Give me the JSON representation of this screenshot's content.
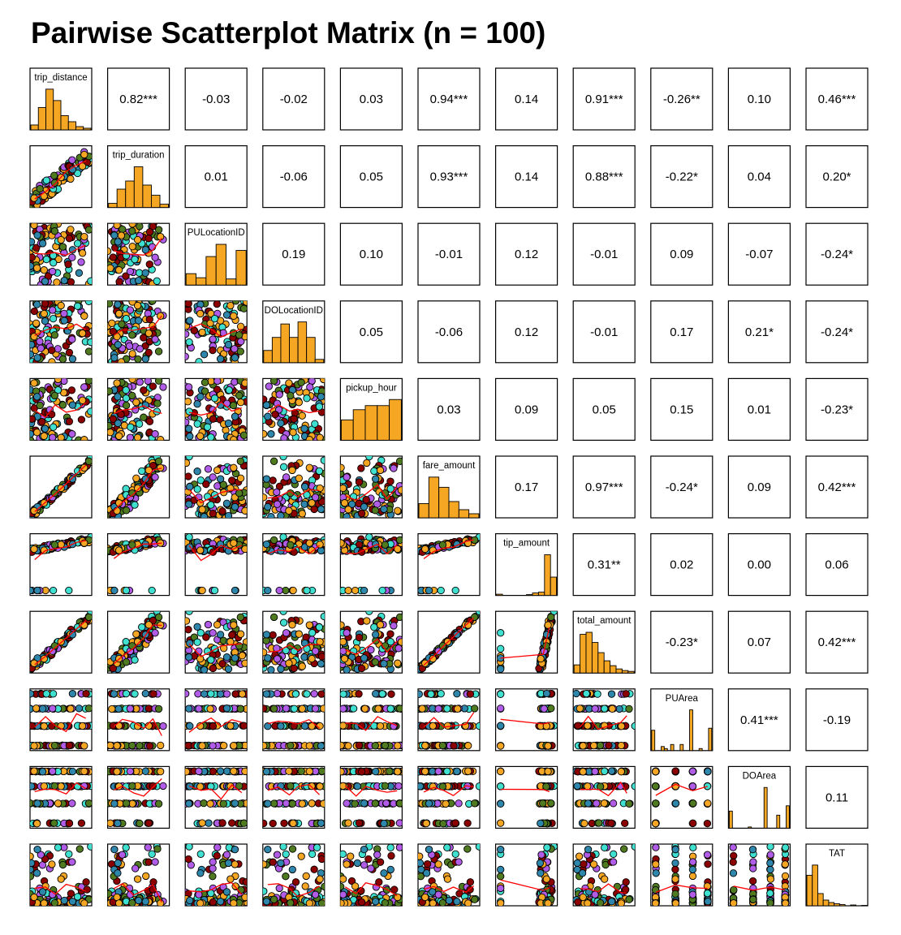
{
  "title": "Pairwise Scatterplot Matrix (n = 100)",
  "colors": {
    "hist_fill": "#F5A623",
    "smoother": "#FF0000",
    "points": [
      "#4F7A1F",
      "#2E86AB",
      "#3FE0D0",
      "#8B0000",
      "#F5A623",
      "#B05CE6"
    ]
  },
  "chart_data": {
    "type": "scatter-matrix",
    "n": 100,
    "variables": [
      "trip_distance",
      "trip_duration",
      "PULocationID",
      "DOLocationID",
      "pickup_hour",
      "fare_amount",
      "tip_amount",
      "total_amount",
      "PUArea",
      "DOArea",
      "TAT"
    ],
    "upper_correlations": [
      [
        "",
        "0.82***",
        "-0.03",
        "-0.02",
        "0.03",
        "0.94***",
        "0.14",
        "0.91***",
        "-0.26**",
        "0.10",
        "0.46***"
      ],
      [
        "",
        "",
        "0.01",
        "-0.06",
        "0.05",
        "0.93***",
        "0.14",
        "0.88***",
        "-0.22*",
        "0.04",
        "0.20*"
      ],
      [
        "",
        "",
        "",
        "0.19",
        "0.10",
        "-0.01",
        "0.12",
        "-0.01",
        "0.09",
        "-0.07",
        "-0.24*"
      ],
      [
        "",
        "",
        "",
        "",
        "0.05",
        "-0.06",
        "0.12",
        "-0.01",
        "0.17",
        "0.21*",
        "-0.24*"
      ],
      [
        "",
        "",
        "",
        "",
        "",
        "0.03",
        "0.09",
        "0.05",
        "0.15",
        "0.01",
        "-0.23*"
      ],
      [
        "",
        "",
        "",
        "",
        "",
        "",
        "0.17",
        "0.97***",
        "-0.24*",
        "0.09",
        "0.42***"
      ],
      [
        "",
        "",
        "",
        "",
        "",
        "",
        "",
        "0.31**",
        "0.02",
        "0.00",
        "0.06"
      ],
      [
        "",
        "",
        "",
        "",
        "",
        "",
        "",
        "",
        "-0.23*",
        "0.07",
        "0.42***"
      ],
      [
        "",
        "",
        "",
        "",
        "",
        "",
        "",
        "",
        "",
        "0.41***",
        "-0.19"
      ],
      [
        "",
        "",
        "",
        "",
        "",
        "",
        "",
        "",
        "",
        "",
        "0.11"
      ],
      [
        "",
        "",
        "",
        "",
        "",
        "",
        "",
        "",
        "",
        "",
        ""
      ]
    ],
    "histograms": [
      [
        0.12,
        0.55,
        1.0,
        0.72,
        0.35,
        0.2,
        0.08,
        0.04
      ],
      [
        0.1,
        0.45,
        0.65,
        1.0,
        0.55,
        0.3,
        0.08
      ],
      [
        0.28,
        0.18,
        0.7,
        1.0,
        0.15,
        0.85
      ],
      [
        0.3,
        0.62,
        0.95,
        0.62,
        1.0,
        0.62,
        0.08
      ],
      [
        0.5,
        0.75,
        0.85,
        0.85,
        1.0
      ],
      [
        0.35,
        1.0,
        0.75,
        0.4,
        0.2,
        0.1
      ],
      [
        0.03,
        0.0,
        0.0,
        0.0,
        0.0,
        0.02,
        0.06,
        0.08,
        1.0,
        0.45
      ],
      [
        0.2,
        0.95,
        1.0,
        0.75,
        0.5,
        0.3,
        0.18,
        0.1,
        0.06,
        0.04
      ],
      [
        0.5,
        0.0,
        0.0,
        0.1,
        0.05,
        0.0,
        0.15,
        0.0,
        0.0,
        0.15,
        0.0,
        0.0,
        1.0,
        0.0,
        0.0,
        0.05,
        0.0,
        0.0,
        0.55
      ],
      [
        0.42,
        0.0,
        0.0,
        0.0,
        0.0,
        0.0,
        0.03,
        0.0,
        0.0,
        0.0,
        0.0,
        1.0,
        0.0,
        0.0,
        0.0,
        0.32,
        0.0,
        0.0,
        0.55
      ],
      [
        0.75,
        1.0,
        0.3,
        0.14,
        0.08,
        0.05,
        0.03,
        0.0,
        0.02,
        0.0,
        0.01
      ]
    ]
  }
}
